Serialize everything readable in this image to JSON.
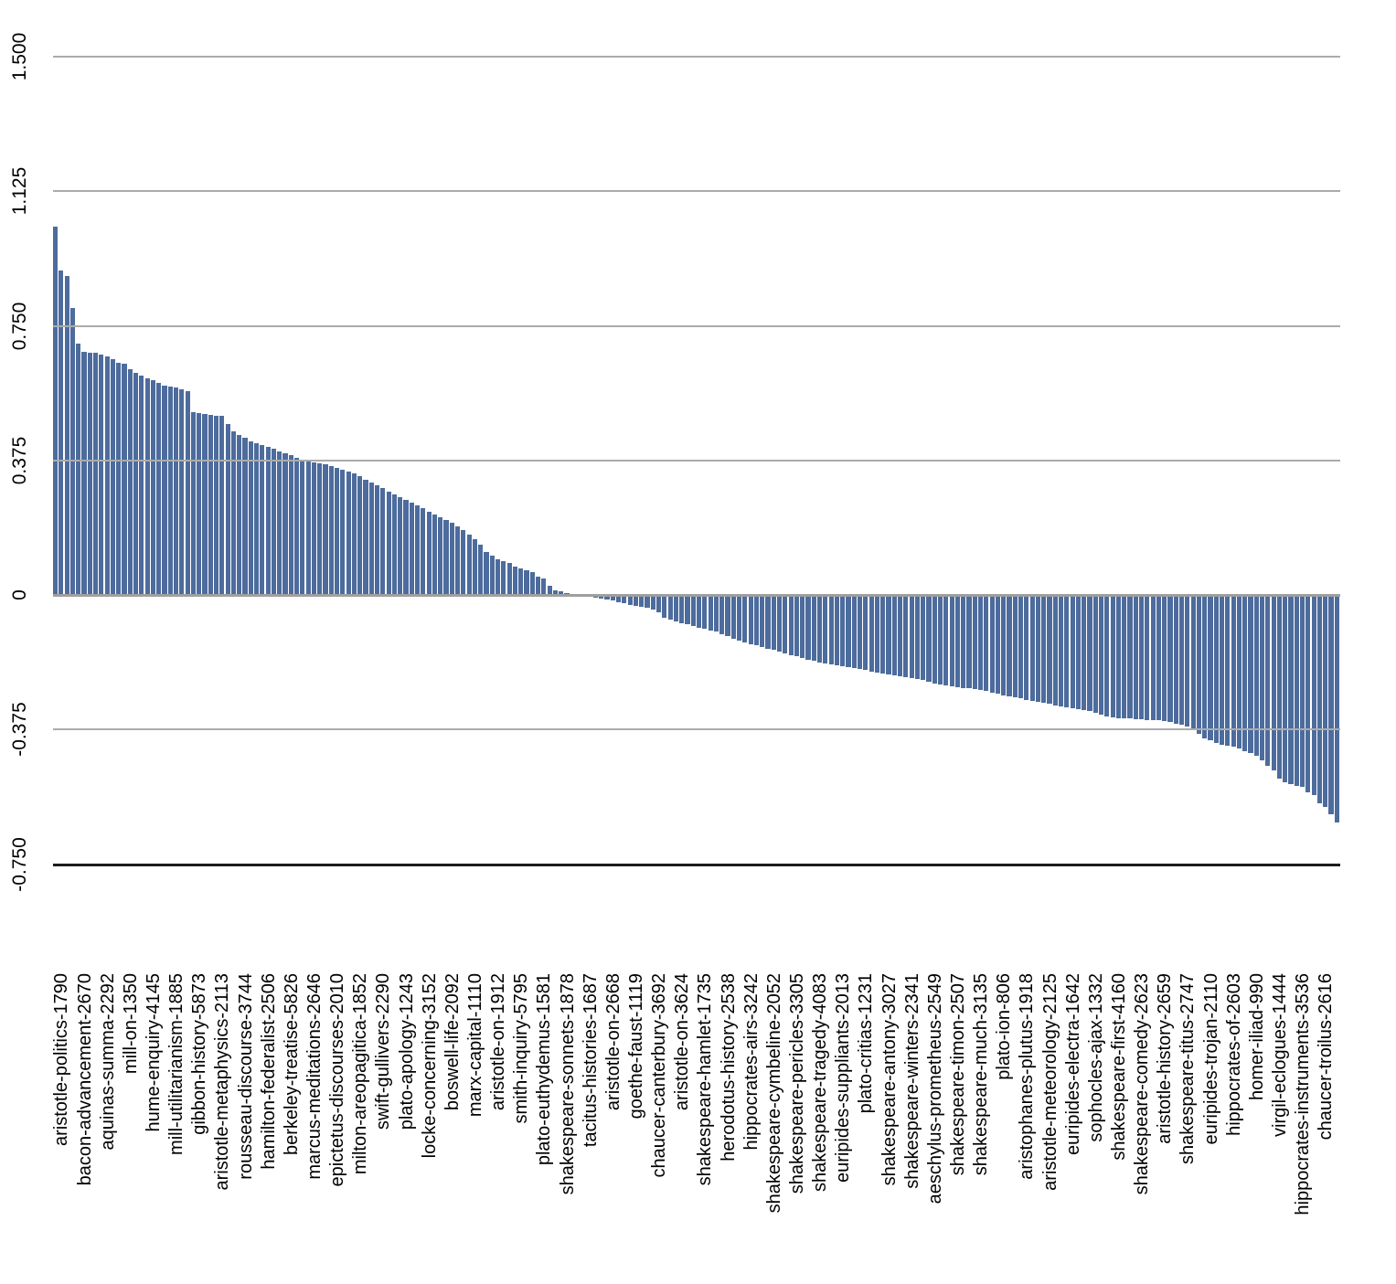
{
  "chart_data": {
    "type": "bar",
    "title": "",
    "xlabel": "",
    "ylabel": "",
    "ylim": [
      -0.75,
      1.5
    ],
    "grid": true,
    "legend": "none",
    "bar_color": "#4d6c9d",
    "gridline_color": "#ababab",
    "zero_line_color": "#9f9f9f",
    "bottom_axis_color": "#1b1b1b",
    "tick_label_rotation_deg": -90,
    "label_every_n_bars": 4,
    "label_offset_bars": 1,
    "y_ticks": [
      "1.500",
      "1.125",
      "0.750",
      "0.375",
      "0",
      "-0.375",
      "-0.750"
    ],
    "y_tick_values": [
      1.5,
      1.125,
      0.75,
      0.375,
      0,
      -0.375,
      -0.75
    ],
    "categories": [
      "aristotle-politics-1790",
      "bacon-advancement-2670",
      "aquinas-summa-2292",
      "mill-on-1350",
      "hume-enquiry-4145",
      "mill-utilitarianism-1885",
      "gibbon-history-5873",
      "aristotle-metaphysics-2113",
      "rousseau-discourse-3744",
      "hamilton-federalist-2506",
      "berkeley-treatise-5826",
      "marcus-meditations-2646",
      "epictetus-discourses-2010",
      "milton-areopagitica-1852",
      "swift-gullivers-2290",
      "plato-apology-1243",
      "locke-concerning-3152",
      "boswell-life-2092",
      "marx-capital-1110",
      "aristotle-on-1912",
      "smith-inquiry-5795",
      "plato-euthydemus-1581",
      "shakespeare-sonnets-1878",
      "tacitus-histories-1687",
      "aristotle-on-2668",
      "goethe-faust-1119",
      "chaucer-canterbury-3692",
      "aristotle-on-3624",
      "shakespeare-hamlet-1735",
      "herodotus-history-2538",
      "hippocrates-airs-3242",
      "shakespeare-cymbeline-2052",
      "shakespeare-pericles-3305",
      "shakespeare-tragedy-4083",
      "euripides-suppliants-2013",
      "plato-critias-1231",
      "shakespeare-antony-3027",
      "shakespeare-winters-2341",
      "aeschylus-prometheus-2549",
      "shakespeare-timon-2507",
      "shakespeare-much-3135",
      "plato-ion-806",
      "aristophanes-plutus-1918",
      "aristotle-meteorology-2125",
      "euripides-electra-1642",
      "sophocles-ajax-1332",
      "shakespeare-first-4160",
      "shakespeare-comedy-2623",
      "aristotle-history-2659",
      "shakespeare-titus-2747",
      "euripides-trojan-2110",
      "hippocrates-of-2603",
      "homer-iliad-990",
      "virgil-eclogues-1444",
      "hippocrates-instruments-3536",
      "chaucer-troilus-2616"
    ],
    "values": [
      1.026,
      0.905,
      0.89,
      0.8,
      0.7,
      0.678,
      0.676,
      0.675,
      0.67,
      0.664,
      0.658,
      0.647,
      0.644,
      0.63,
      0.62,
      0.61,
      0.604,
      0.599,
      0.59,
      0.584,
      0.58,
      0.577,
      0.573,
      0.568,
      0.51,
      0.506,
      0.503,
      0.501,
      0.5,
      0.498,
      0.476,
      0.455,
      0.446,
      0.437,
      0.428,
      0.423,
      0.417,
      0.412,
      0.407,
      0.4,
      0.395,
      0.39,
      0.383,
      0.377,
      0.372,
      0.37,
      0.367,
      0.363,
      0.358,
      0.354,
      0.35,
      0.345,
      0.338,
      0.33,
      0.322,
      0.313,
      0.305,
      0.297,
      0.289,
      0.281,
      0.273,
      0.265,
      0.257,
      0.249,
      0.241,
      0.233,
      0.225,
      0.217,
      0.209,
      0.201,
      0.19,
      0.18,
      0.168,
      0.155,
      0.14,
      0.12,
      0.11,
      0.1,
      0.093,
      0.088,
      0.08,
      0.075,
      0.07,
      0.064,
      0.052,
      0.047,
      0.026,
      0.013,
      0.009,
      0.004,
      0.003,
      0.002,
      0.002,
      0.001,
      -0.003,
      -0.006,
      -0.009,
      -0.012,
      -0.017,
      -0.02,
      -0.023,
      -0.027,
      -0.03,
      -0.033,
      -0.038,
      -0.044,
      -0.06,
      -0.066,
      -0.07,
      -0.074,
      -0.078,
      -0.082,
      -0.087,
      -0.091,
      -0.095,
      -0.099,
      -0.106,
      -0.112,
      -0.118,
      -0.124,
      -0.129,
      -0.133,
      -0.137,
      -0.141,
      -0.146,
      -0.15,
      -0.154,
      -0.158,
      -0.163,
      -0.168,
      -0.173,
      -0.177,
      -0.18,
      -0.184,
      -0.188,
      -0.19,
      -0.193,
      -0.196,
      -0.198,
      -0.2,
      -0.202,
      -0.205,
      -0.209,
      -0.212,
      -0.215,
      -0.218,
      -0.22,
      -0.222,
      -0.225,
      -0.227,
      -0.23,
      -0.234,
      -0.238,
      -0.242,
      -0.245,
      -0.248,
      -0.25,
      -0.253,
      -0.255,
      -0.257,
      -0.259,
      -0.261,
      -0.264,
      -0.268,
      -0.272,
      -0.276,
      -0.279,
      -0.282,
      -0.285,
      -0.288,
      -0.291,
      -0.294,
      -0.297,
      -0.3,
      -0.305,
      -0.308,
      -0.31,
      -0.312,
      -0.314,
      -0.316,
      -0.32,
      -0.325,
      -0.33,
      -0.334,
      -0.337,
      -0.339,
      -0.34,
      -0.341,
      -0.342,
      -0.343,
      -0.344,
      -0.344,
      -0.345,
      -0.348,
      -0.351,
      -0.354,
      -0.358,
      -0.362,
      -0.371,
      -0.384,
      -0.396,
      -0.4,
      -0.409,
      -0.413,
      -0.416,
      -0.42,
      -0.425,
      -0.431,
      -0.437,
      -0.445,
      -0.456,
      -0.473,
      -0.486,
      -0.507,
      -0.518,
      -0.524,
      -0.528,
      -0.532,
      -0.547,
      -0.553,
      -0.576,
      -0.587,
      -0.608,
      -0.63
    ]
  }
}
